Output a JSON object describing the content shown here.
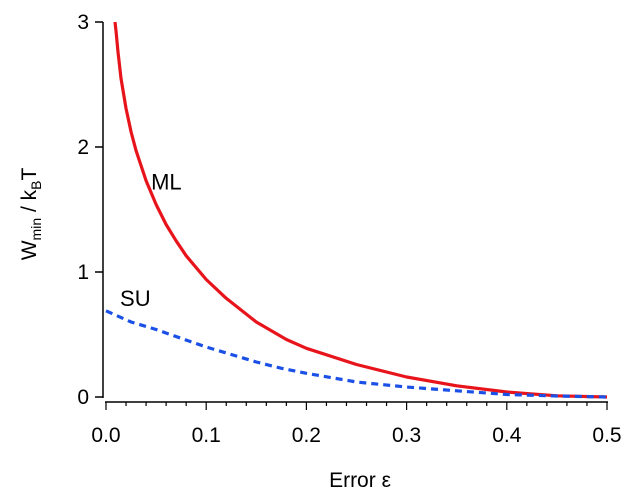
{
  "chart_data": {
    "type": "line",
    "xlabel": "Error  ε",
    "ylabel_parts": {
      "main": "W",
      "sub": "min",
      "mid": " / k",
      "sub2": "B",
      "end": "T"
    },
    "xlim": [
      0,
      0.5
    ],
    "ylim": [
      0,
      3
    ],
    "x_ticks": [
      0.0,
      0.1,
      0.2,
      0.3,
      0.4,
      0.5
    ],
    "x_tick_labels": [
      "0.0",
      "0.1",
      "0.2",
      "0.3",
      "0.4",
      "0.5"
    ],
    "y_ticks": [
      0,
      1,
      2,
      3
    ],
    "y_tick_labels": [
      "0",
      "1",
      "2",
      "3"
    ],
    "grid": false,
    "series": [
      {
        "name": "ML",
        "color": "#e8141b",
        "style": "solid",
        "x": [
          0.009,
          0.01,
          0.012,
          0.015,
          0.02,
          0.025,
          0.03,
          0.04,
          0.05,
          0.06,
          0.07,
          0.08,
          0.1,
          0.12,
          0.15,
          0.18,
          0.2,
          0.25,
          0.3,
          0.35,
          0.4,
          0.45,
          0.5
        ],
        "y": [
          3.0,
          2.93,
          2.76,
          2.55,
          2.31,
          2.12,
          1.97,
          1.73,
          1.54,
          1.38,
          1.25,
          1.13,
          0.94,
          0.79,
          0.6,
          0.46,
          0.39,
          0.26,
          0.16,
          0.09,
          0.04,
          0.01,
          0.0
        ]
      },
      {
        "name": "SU",
        "color": "#1a50e6",
        "style": "dashed",
        "x": [
          0.0,
          0.025,
          0.05,
          0.075,
          0.1,
          0.125,
          0.15,
          0.175,
          0.2,
          0.25,
          0.3,
          0.35,
          0.4,
          0.45,
          0.5
        ],
        "y": [
          0.69,
          0.6,
          0.54,
          0.47,
          0.4,
          0.34,
          0.28,
          0.23,
          0.19,
          0.12,
          0.08,
          0.05,
          0.02,
          0.008,
          0.0
        ]
      }
    ],
    "annotations": [
      {
        "text": "ML",
        "x": 0.045,
        "y": 1.66
      },
      {
        "text": "SU",
        "x": 0.014,
        "y": 0.73
      }
    ]
  }
}
